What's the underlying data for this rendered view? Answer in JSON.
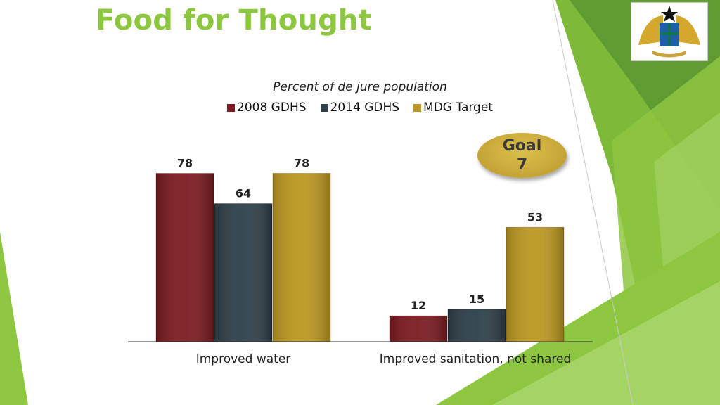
{
  "slide": {
    "title": "Food for Thought",
    "badge_text": "Goal 7",
    "accent_color": "#8dc63f"
  },
  "logo": {
    "icon": "ghana-coat-of-arms-icon"
  },
  "chart_data": {
    "type": "bar",
    "title": "Percent of de jure population",
    "categories": [
      "Improved water",
      "Improved sanitation, not shared"
    ],
    "series": [
      {
        "name": "2008 GDHS",
        "values": [
          78,
          12
        ],
        "color": "#7b1a1f"
      },
      {
        "name": "2014 GDHS",
        "values": [
          64,
          15
        ],
        "color": "#2e3f48"
      },
      {
        "name": "MDG Target",
        "values": [
          78,
          53
        ],
        "color": "#bd9820"
      }
    ],
    "ylim": [
      0,
      100
    ],
    "xlabel": "",
    "ylabel": "",
    "grid": false,
    "legend": "top-center"
  }
}
